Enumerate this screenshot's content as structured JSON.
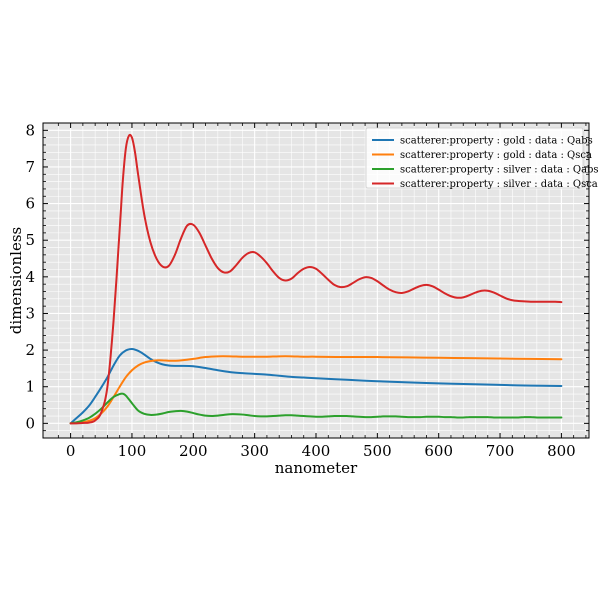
{
  "chart_data": {
    "type": "line",
    "title": "",
    "xlabel": "nanometer",
    "ylabel": "dimensionless",
    "xlim": [
      -45,
      845
    ],
    "ylim": [
      -0.4,
      8.2
    ],
    "xticks": [
      0,
      100,
      200,
      300,
      400,
      500,
      600,
      700,
      800
    ],
    "yticks": [
      0,
      1,
      2,
      3,
      4,
      5,
      6,
      7,
      8
    ],
    "grid": true,
    "legend_position": "top-right",
    "series": [
      {
        "name": "scatterer:property : gold : data : Qabs",
        "color": "#1f77b4",
        "x": [
          0,
          10,
          20,
          30,
          40,
          50,
          60,
          70,
          80,
          90,
          100,
          110,
          120,
          130,
          140,
          150,
          160,
          170,
          180,
          200,
          220,
          240,
          260,
          280,
          300,
          320,
          340,
          360,
          380,
          400,
          450,
          500,
          550,
          600,
          650,
          700,
          750,
          800
        ],
        "y": [
          0.0,
          0.15,
          0.3,
          0.48,
          0.72,
          0.98,
          1.26,
          1.58,
          1.85,
          1.99,
          2.03,
          1.98,
          1.88,
          1.76,
          1.67,
          1.61,
          1.58,
          1.57,
          1.57,
          1.56,
          1.51,
          1.45,
          1.4,
          1.37,
          1.35,
          1.33,
          1.3,
          1.27,
          1.25,
          1.23,
          1.19,
          1.15,
          1.12,
          1.09,
          1.07,
          1.05,
          1.03,
          1.02
        ]
      },
      {
        "name": "scatterer:property : gold : data : Qsca",
        "color": "#ff7f0e",
        "x": [
          0,
          10,
          20,
          30,
          40,
          50,
          60,
          70,
          80,
          90,
          100,
          110,
          120,
          130,
          140,
          150,
          160,
          170,
          180,
          200,
          220,
          240,
          260,
          280,
          300,
          320,
          340,
          360,
          380,
          400,
          450,
          500,
          550,
          600,
          650,
          700,
          750,
          800
        ],
        "y": [
          0.0,
          0.01,
          0.03,
          0.07,
          0.14,
          0.27,
          0.46,
          0.72,
          1.0,
          1.26,
          1.45,
          1.58,
          1.66,
          1.7,
          1.72,
          1.72,
          1.71,
          1.71,
          1.72,
          1.76,
          1.81,
          1.83,
          1.83,
          1.82,
          1.82,
          1.82,
          1.83,
          1.83,
          1.82,
          1.82,
          1.81,
          1.81,
          1.8,
          1.79,
          1.78,
          1.77,
          1.76,
          1.75
        ]
      },
      {
        "name": "scatterer:property : silver : data : Qabs",
        "color": "#2ca02c",
        "x": [
          0,
          10,
          20,
          30,
          40,
          50,
          60,
          70,
          80,
          85,
          90,
          100,
          110,
          120,
          130,
          140,
          150,
          160,
          170,
          180,
          190,
          200,
          210,
          220,
          230,
          240,
          250,
          260,
          270,
          280,
          290,
          300,
          310,
          320,
          330,
          340,
          350,
          360,
          370,
          380,
          390,
          400,
          410,
          420,
          430,
          440,
          450,
          460,
          470,
          480,
          490,
          500,
          510,
          520,
          530,
          540,
          550,
          560,
          570,
          580,
          590,
          600,
          610,
          620,
          630,
          640,
          650,
          660,
          670,
          680,
          690,
          700,
          710,
          720,
          730,
          740,
          750,
          760,
          770,
          780,
          790,
          800
        ],
        "y": [
          0.0,
          0.03,
          0.08,
          0.15,
          0.26,
          0.4,
          0.57,
          0.72,
          0.8,
          0.81,
          0.76,
          0.55,
          0.35,
          0.26,
          0.23,
          0.24,
          0.27,
          0.31,
          0.33,
          0.34,
          0.32,
          0.28,
          0.24,
          0.21,
          0.2,
          0.21,
          0.23,
          0.25,
          0.25,
          0.24,
          0.22,
          0.2,
          0.19,
          0.19,
          0.2,
          0.21,
          0.22,
          0.22,
          0.21,
          0.2,
          0.19,
          0.18,
          0.18,
          0.19,
          0.2,
          0.2,
          0.2,
          0.19,
          0.18,
          0.17,
          0.17,
          0.18,
          0.19,
          0.19,
          0.19,
          0.18,
          0.17,
          0.17,
          0.17,
          0.18,
          0.18,
          0.18,
          0.17,
          0.17,
          0.16,
          0.16,
          0.17,
          0.17,
          0.17,
          0.17,
          0.16,
          0.16,
          0.16,
          0.16,
          0.16,
          0.17,
          0.17,
          0.16,
          0.16,
          0.16,
          0.16,
          0.16
        ]
      },
      {
        "name": "scatterer:property : silver : data : Qsca",
        "color": "#d62728",
        "x": [
          0,
          10,
          20,
          30,
          40,
          50,
          60,
          70,
          80,
          85,
          90,
          95,
          100,
          105,
          110,
          120,
          130,
          140,
          150,
          160,
          170,
          180,
          190,
          200,
          210,
          220,
          230,
          240,
          250,
          260,
          270,
          280,
          290,
          300,
          310,
          320,
          330,
          340,
          350,
          360,
          370,
          380,
          390,
          400,
          410,
          420,
          430,
          440,
          450,
          460,
          470,
          480,
          490,
          500,
          510,
          520,
          530,
          540,
          550,
          560,
          570,
          580,
          590,
          600,
          610,
          620,
          630,
          640,
          650,
          660,
          670,
          680,
          690,
          700,
          710,
          720,
          730,
          740,
          750,
          760,
          770,
          780,
          790,
          800
        ],
        "y": [
          0.0,
          0.0,
          0.01,
          0.02,
          0.08,
          0.3,
          1.0,
          2.8,
          5.3,
          6.6,
          7.5,
          7.85,
          7.8,
          7.4,
          6.8,
          5.7,
          4.95,
          4.5,
          4.28,
          4.3,
          4.6,
          5.05,
          5.4,
          5.42,
          5.2,
          4.85,
          4.5,
          4.24,
          4.12,
          4.15,
          4.32,
          4.52,
          4.65,
          4.67,
          4.55,
          4.37,
          4.15,
          3.97,
          3.9,
          3.95,
          4.1,
          4.22,
          4.27,
          4.22,
          4.08,
          3.92,
          3.78,
          3.72,
          3.74,
          3.83,
          3.93,
          3.99,
          3.97,
          3.88,
          3.76,
          3.65,
          3.58,
          3.56,
          3.6,
          3.68,
          3.75,
          3.78,
          3.74,
          3.65,
          3.55,
          3.47,
          3.43,
          3.44,
          3.5,
          3.57,
          3.62,
          3.62,
          3.57,
          3.49,
          3.41,
          3.36,
          3.34,
          3.33,
          3.32,
          3.32,
          3.32,
          3.32,
          3.32,
          3.31
        ]
      }
    ]
  }
}
